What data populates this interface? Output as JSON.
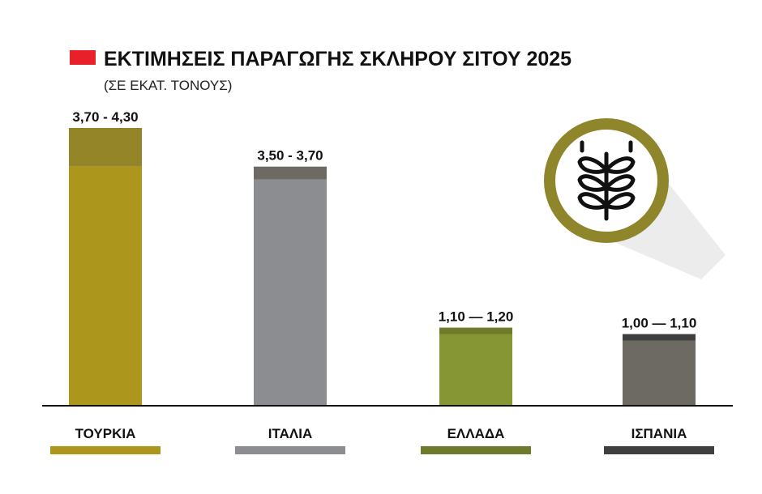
{
  "chart_data": {
    "type": "bar",
    "title": "ΕΚΤΙΜΗΣΕΙΣ ΠΑΡΑΓΩΓΗΣ ΣΚΛΗΡΟΥ ΣΙΤΟΥ 2025",
    "subtitle": "(ΣΕ ΕΚΑΤ. ΤΟΝΟΥΣ)",
    "categories": [
      "ΤΟΥΡΚΙΑ",
      "ΙΤΑΛΙΑ",
      "ΕΛΛΑΔΑ",
      "ΙΣΠΑΝΙΑ"
    ],
    "ranges": [
      {
        "low": 3.7,
        "high": 4.3,
        "label": "3,70 - 4,30"
      },
      {
        "low": 3.5,
        "high": 3.7,
        "label": "3,50 - 3,70"
      },
      {
        "low": 1.1,
        "high": 1.2,
        "label": "1,10 — 1,20"
      },
      {
        "low": 1.0,
        "high": 1.1,
        "label": "1,00 — 1,10"
      }
    ],
    "ylim": [
      0,
      4.3
    ],
    "colors": {
      "title_marker": "#e8202a",
      "bars": [
        "#ad961c",
        "#8c8d90",
        "#879634",
        "#6d6a63"
      ],
      "bar_tops": [
        "#948628",
        "#6d6a63",
        "#707a2b",
        "#3f3f40"
      ],
      "legend_swatches": [
        "#ad961c",
        "#8c8d90",
        "#707a2b",
        "#3f3f40"
      ],
      "icon_ring": "#8f852a",
      "icon_glyph": "#111111"
    },
    "icon": "wheat-icon"
  }
}
